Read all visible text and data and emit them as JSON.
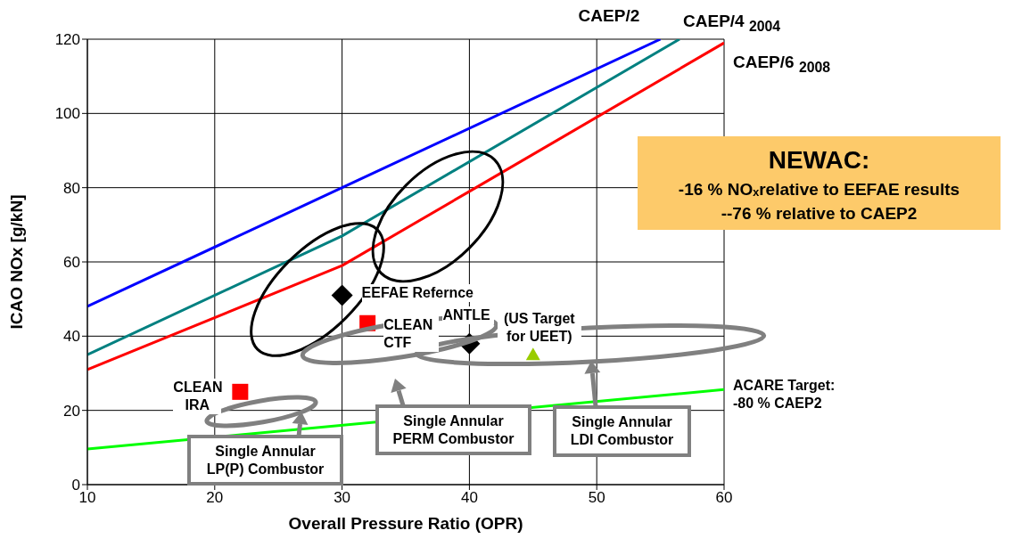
{
  "chart_data": {
    "type": "line",
    "xlabel": "Overall Pressure Ratio (OPR)",
    "ylabel": "ICAO NOx [g/kN]",
    "xlim": [
      10,
      60
    ],
    "xticks": [
      10,
      20,
      30,
      40,
      50,
      60
    ],
    "ylim": [
      0,
      120
    ],
    "yticks": [
      0,
      20,
      40,
      60,
      80,
      100,
      120
    ],
    "grid": true,
    "marker": "none",
    "line_style": "solid",
    "series": [
      {
        "name": "CAEP/2",
        "color": "#0000ff",
        "x": [
          10,
          30,
          55
        ],
        "values": [
          48,
          80,
          120
        ]
      },
      {
        "name": "CAEP/4 $_{2004}$",
        "color": "#008080",
        "x": [
          10,
          30,
          56.5
        ],
        "values": [
          35,
          67,
          120
        ]
      },
      {
        "name": "CAEP/6 $_{2008}$",
        "color": "#ff0000",
        "x": [
          10,
          30,
          40,
          60
        ],
        "values": [
          31,
          59,
          79,
          119
        ]
      },
      {
        "name": "ACARE Target: -80 % CAEP2",
        "color": "#00ff00",
        "x": [
          10,
          60
        ],
        "values": [
          9.6,
          25.6
        ]
      },
      {
        "name": "EEFAE Refernce",
        "type": "scatter",
        "marker": "diamond",
        "color": "#000000",
        "x": [
          30
        ],
        "values": [
          51
        ]
      },
      {
        "name": "CLEAN CTF",
        "type": "scatter",
        "marker": "square",
        "color": "#ff0000",
        "x": [
          32
        ],
        "values": [
          43.5
        ]
      },
      {
        "name": "ANTLE",
        "type": "scatter",
        "marker": "diamond",
        "color": "#000000",
        "x": [
          40
        ],
        "values": [
          38
        ]
      },
      {
        "name": "CLEAN IRA",
        "type": "scatter",
        "marker": "square",
        "color": "#ff0000",
        "x": [
          22
        ],
        "values": [
          25
        ]
      },
      {
        "name": "(US Target for UEET)",
        "type": "scatter",
        "marker": "triangle",
        "color": "#99cc00",
        "x": [
          45
        ],
        "values": [
          35
        ]
      }
    ],
    "annotations": [
      "NEWAC:",
      "-16 % NOₓrelative to EEFAE results",
      "--76 % relative to CAEP2",
      "Single Annular LP(P) Combustor",
      "Single Annular PERM Combustor",
      "Single Annular LDI Combustor"
    ]
  }
}
